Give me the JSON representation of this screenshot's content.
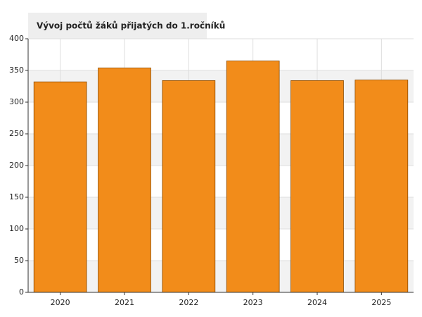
{
  "chart_data": {
    "type": "bar",
    "title": "Vývoj počtů žáků přijatých do 1.ročníků",
    "categories": [
      "2020",
      "2021",
      "2022",
      "2023",
      "2024",
      "2025"
    ],
    "values": [
      332,
      354,
      334,
      365,
      334,
      335
    ],
    "color": "#f28c1a",
    "ylim": [
      0,
      400
    ],
    "yticks": [
      0,
      50,
      100,
      150,
      200,
      250,
      300,
      350,
      400
    ],
    "grid": true
  }
}
